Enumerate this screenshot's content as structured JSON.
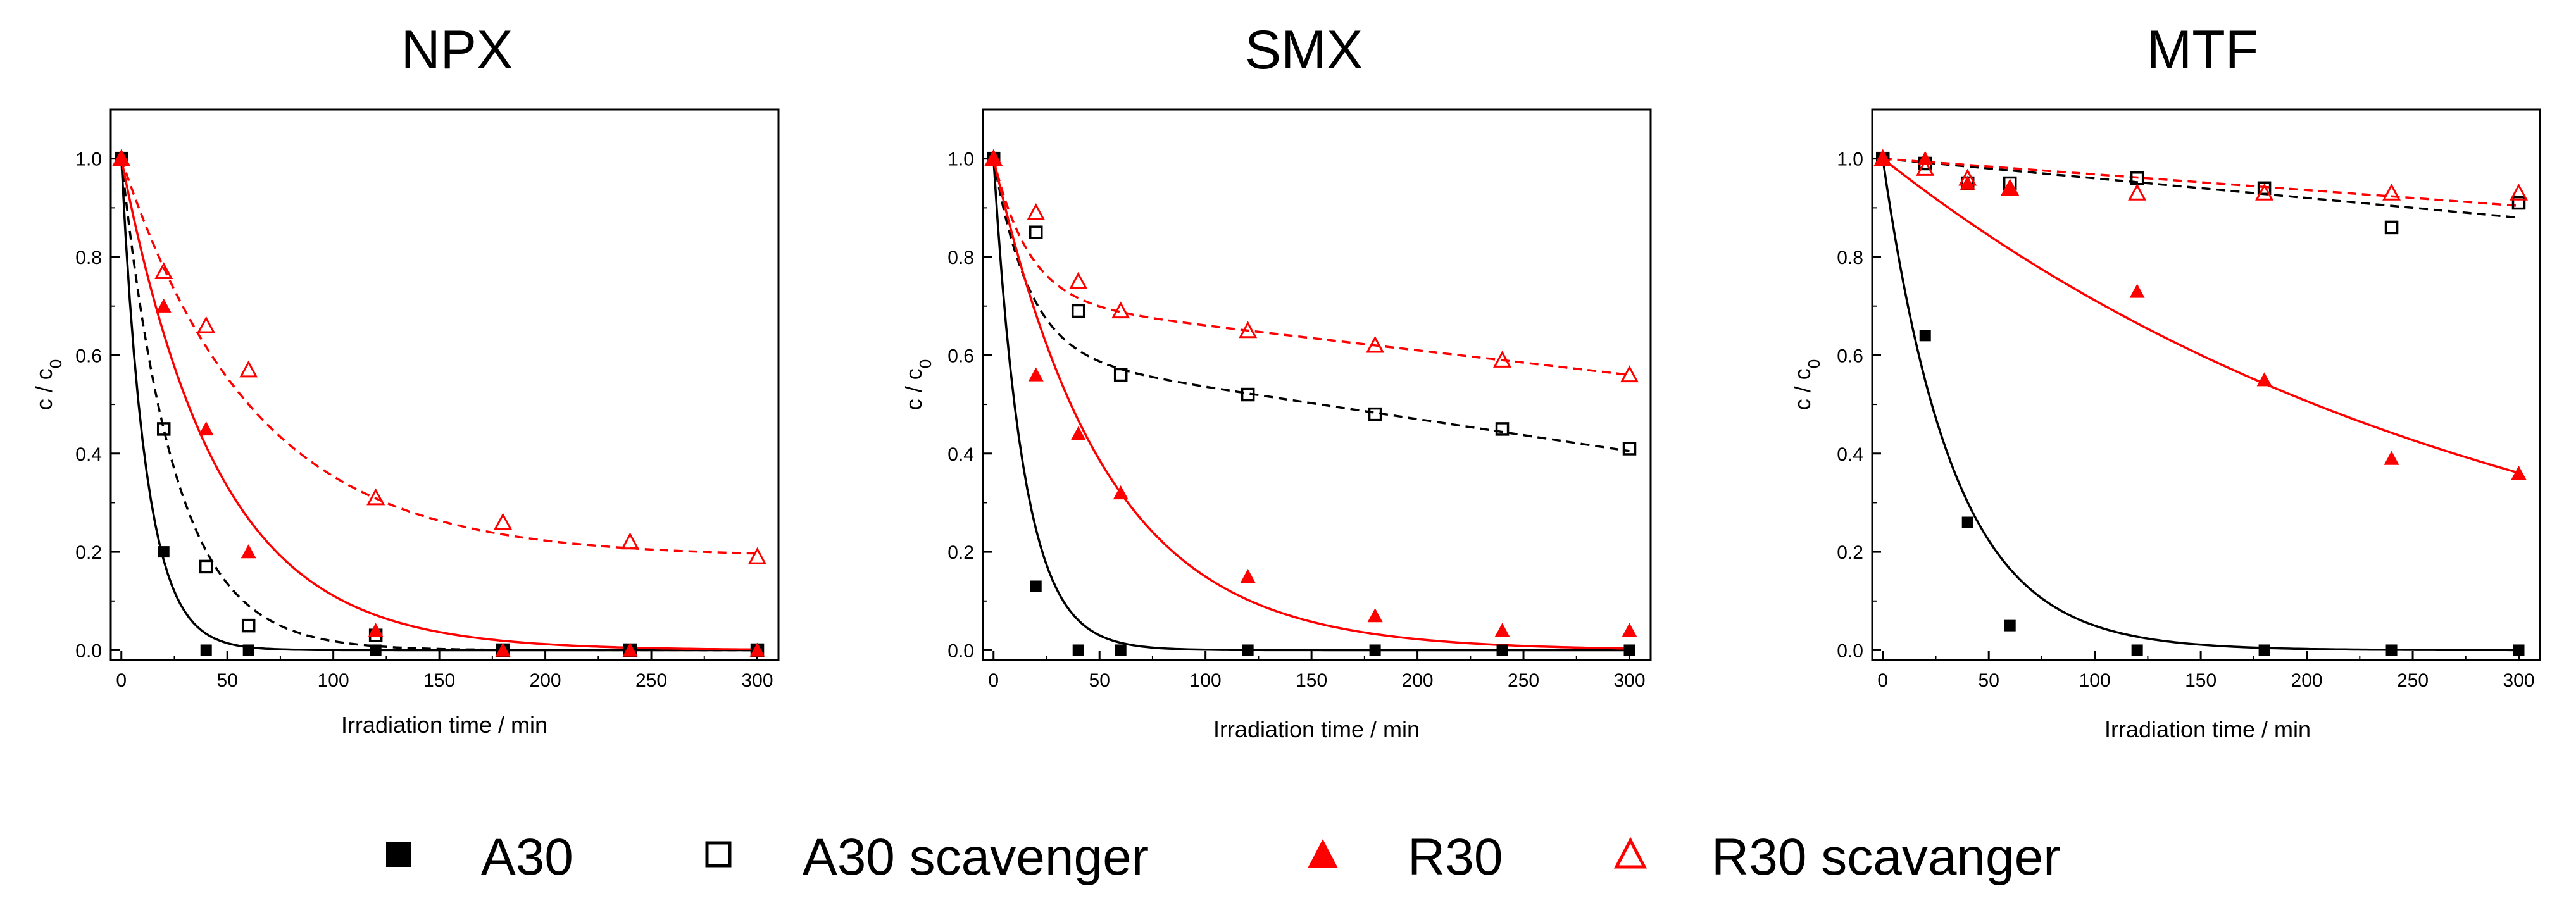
{
  "colors": {
    "black": "#000000",
    "red": "#ff0000"
  },
  "legend": [
    {
      "label": "A30",
      "marker": "filled-square",
      "color": "#000000"
    },
    {
      "label": "A30 scavenger",
      "marker": "open-square",
      "color": "#000000"
    },
    {
      "label": "R30",
      "marker": "filled-triangle",
      "color": "#ff0000"
    },
    {
      "label": "R30 scavanger",
      "marker": "open-triangle",
      "color": "#ff0000"
    }
  ],
  "chart_data": [
    {
      "type": "scatter",
      "title": "NPX",
      "xlabel": "Irradiation time / min",
      "ylabel": "c / c0",
      "xlim": [
        -5,
        310
      ],
      "ylim": [
        -0.02,
        1.1
      ],
      "xticks": [
        0,
        50,
        100,
        150,
        200,
        250,
        300
      ],
      "yticks": [
        0.0,
        0.2,
        0.4,
        0.6,
        0.8,
        1.0
      ],
      "series": [
        {
          "name": "A30",
          "x": [
            0,
            20,
            40,
            60,
            120,
            180,
            240,
            300
          ],
          "y": [
            1.0,
            0.2,
            0.0,
            0.0,
            0.0,
            0.0,
            0.0,
            0.0
          ],
          "fit": {
            "form": "exp",
            "a": 0.0,
            "b": 1.0,
            "k": 0.085
          }
        },
        {
          "name": "A30 scavenger",
          "x": [
            0,
            20,
            40,
            60,
            120,
            180,
            240,
            300
          ],
          "y": [
            1.0,
            0.45,
            0.17,
            0.05,
            0.03,
            0.0,
            0.0,
            0.0
          ],
          "fit": {
            "form": "exp",
            "a": 0.0,
            "b": 1.0,
            "k": 0.04
          }
        },
        {
          "name": "R30",
          "x": [
            0,
            20,
            40,
            60,
            120,
            180,
            240,
            300
          ],
          "y": [
            1.0,
            0.7,
            0.45,
            0.2,
            0.04,
            0.0,
            0.0,
            0.0
          ],
          "fit": {
            "form": "exp",
            "a": 0.0,
            "b": 1.0,
            "k": 0.022
          }
        },
        {
          "name": "R30 scavanger",
          "x": [
            0,
            20,
            40,
            60,
            120,
            180,
            240,
            300
          ],
          "y": [
            1.0,
            0.77,
            0.66,
            0.57,
            0.31,
            0.26,
            0.22,
            0.19
          ],
          "fit": {
            "form": "exp",
            "a": 0.19,
            "b": 0.81,
            "k": 0.016
          }
        }
      ]
    },
    {
      "type": "scatter",
      "title": "SMX",
      "xlabel": "Irradiation time / min",
      "ylabel": "c / c0",
      "xlim": [
        -5,
        310
      ],
      "ylim": [
        -0.02,
        1.1
      ],
      "xticks": [
        0,
        50,
        100,
        150,
        200,
        250,
        300
      ],
      "yticks": [
        0.0,
        0.2,
        0.4,
        0.6,
        0.8,
        1.0
      ],
      "series": [
        {
          "name": "A30",
          "x": [
            0,
            20,
            40,
            60,
            120,
            180,
            240,
            300
          ],
          "y": [
            1.0,
            0.13,
            0.0,
            0.0,
            0.0,
            0.0,
            0.0,
            0.0
          ],
          "fit": {
            "form": "exp",
            "a": 0.0,
            "b": 1.0,
            "k": 0.07
          }
        },
        {
          "name": "A30 scavenger",
          "x": [
            0,
            20,
            40,
            60,
            120,
            180,
            240,
            300
          ],
          "y": [
            1.0,
            0.85,
            0.69,
            0.56,
            0.52,
            0.48,
            0.45,
            0.41
          ],
          "fit": {
            "form": "biexp",
            "a": 0.6,
            "b": 0.4,
            "k": 0.06,
            "m": -0.00065
          }
        },
        {
          "name": "R30",
          "x": [
            0,
            20,
            40,
            60,
            120,
            180,
            240,
            300
          ],
          "y": [
            1.0,
            0.56,
            0.44,
            0.32,
            0.15,
            0.07,
            0.04,
            0.04
          ],
          "fit": {
            "form": "exp",
            "a": 0.0,
            "b": 1.0,
            "k": 0.019
          }
        },
        {
          "name": "R30 scavanger",
          "x": [
            0,
            20,
            40,
            60,
            120,
            180,
            240,
            300
          ],
          "y": [
            1.0,
            0.89,
            0.75,
            0.69,
            0.65,
            0.62,
            0.59,
            0.56
          ],
          "fit": {
            "form": "biexp",
            "a": 0.71,
            "b": 0.29,
            "k": 0.06,
            "m": -0.0005
          }
        }
      ]
    },
    {
      "type": "scatter",
      "title": "MTF",
      "xlabel": "Irradiation time / min",
      "ylabel": "c / c0",
      "xlim": [
        -5,
        310
      ],
      "ylim": [
        -0.02,
        1.1
      ],
      "xticks": [
        0,
        50,
        100,
        150,
        200,
        250,
        300
      ],
      "yticks": [
        0.0,
        0.2,
        0.4,
        0.6,
        0.8,
        1.0
      ],
      "series": [
        {
          "name": "A30",
          "x": [
            0,
            20,
            40,
            60,
            120,
            180,
            240,
            300
          ],
          "y": [
            1.0,
            0.64,
            0.26,
            0.05,
            0.0,
            0.0,
            0.0,
            0.0
          ],
          "fit": {
            "form": "exp",
            "a": 0.0,
            "b": 1.0,
            "k": 0.03
          }
        },
        {
          "name": "A30 scavenger",
          "x": [
            0,
            20,
            40,
            60,
            120,
            180,
            240,
            300
          ],
          "y": [
            1.0,
            0.99,
            0.95,
            0.95,
            0.96,
            0.94,
            0.86,
            0.91
          ],
          "fit": {
            "form": "lin",
            "a": 1.0,
            "m": -0.0004
          }
        },
        {
          "name": "R30",
          "x": [
            0,
            20,
            40,
            60,
            120,
            180,
            240,
            300
          ],
          "y": [
            1.0,
            1.0,
            0.95,
            0.94,
            0.73,
            0.55,
            0.39,
            0.36
          ],
          "fit": {
            "form": "exp",
            "a": 0.0,
            "b": 1.0,
            "k": 0.0034
          }
        },
        {
          "name": "R30 scavanger",
          "x": [
            0,
            20,
            40,
            60,
            120,
            180,
            240,
            300
          ],
          "y": [
            1.0,
            0.98,
            0.96,
            0.94,
            0.93,
            0.93,
            0.93,
            0.93
          ],
          "fit": {
            "form": "lin",
            "a": 1.0,
            "m": -0.00032
          }
        }
      ]
    }
  ]
}
